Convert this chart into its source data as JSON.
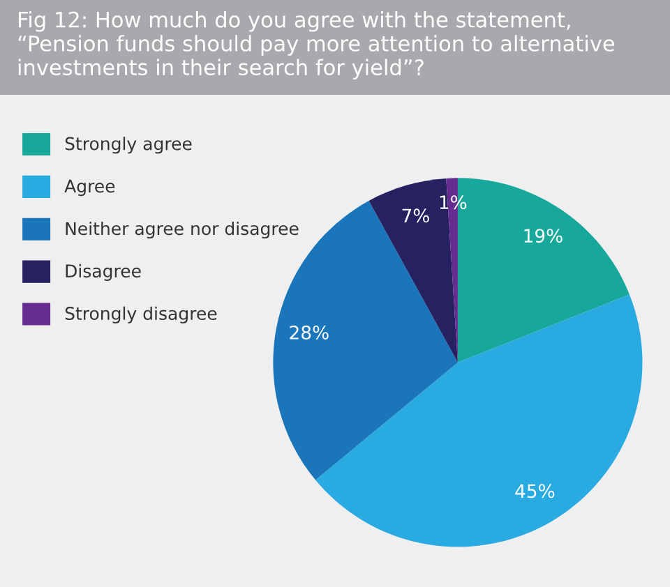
{
  "chart_data": {
    "type": "pie",
    "title": "Fig 12: How much do you agree with the statement, “Pension funds should pay more attention to alternative investments in their search for yield”?",
    "categories": [
      "Strongly agree",
      "Agree",
      "Neither agree nor disagree",
      "Disagree",
      "Strongly disagree"
    ],
    "values": [
      19,
      45,
      28,
      7,
      1
    ],
    "colors": [
      "#17a89b",
      "#29abe2",
      "#1b75bb",
      "#262262",
      "#662d91"
    ],
    "value_labels": [
      "19%",
      "45%",
      "28%",
      "7%",
      "1%"
    ],
    "legend": "left"
  }
}
